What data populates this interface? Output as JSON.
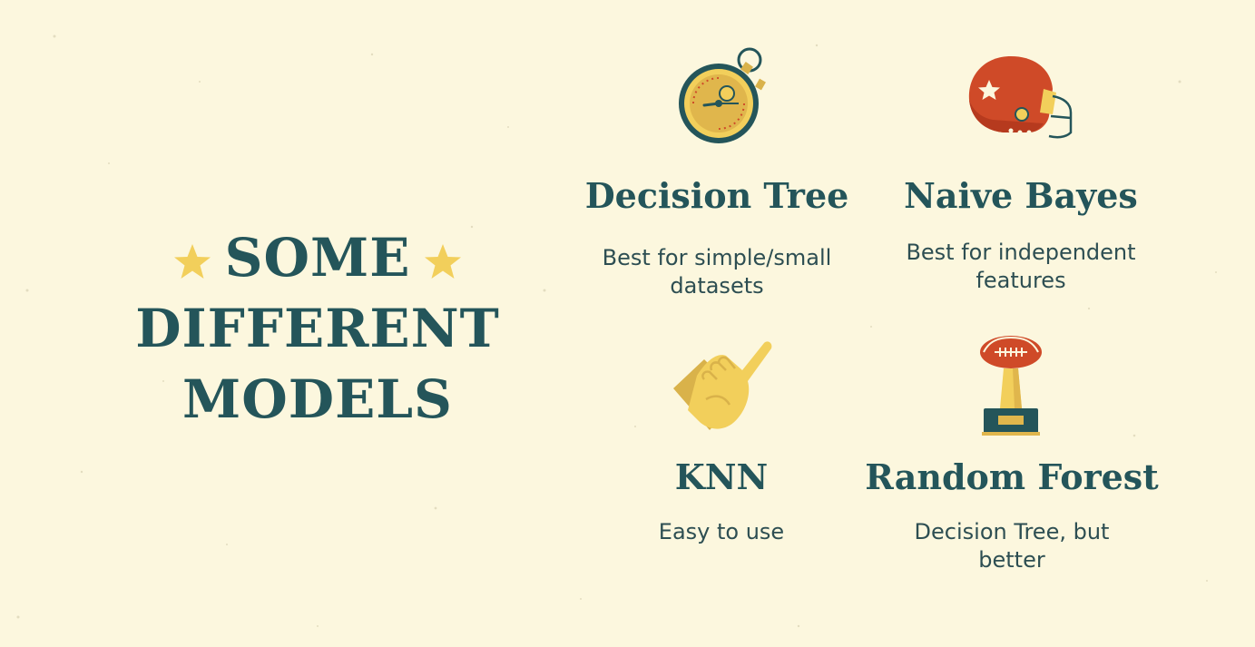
{
  "slide": {
    "heading_line1": "SOME",
    "heading_line2": "DIFFERENT",
    "heading_line3": "MODELS"
  },
  "models": [
    {
      "title": "Decision Tree",
      "description": "Best for simple/small datasets",
      "icon": "stopwatch-icon"
    },
    {
      "title": "Naive Bayes",
      "description": "Best for independent features",
      "icon": "football-helmet-icon"
    },
    {
      "title": "KNN",
      "description": "Easy to use",
      "icon": "foam-finger-icon"
    },
    {
      "title": "Random Forest",
      "description": "Decision Tree, but better",
      "icon": "trophy-icon"
    }
  ],
  "colors": {
    "background": "#fcf7de",
    "text": "#24555a",
    "accent_yellow": "#f2cf5b",
    "accent_red": "#cf4a28"
  }
}
